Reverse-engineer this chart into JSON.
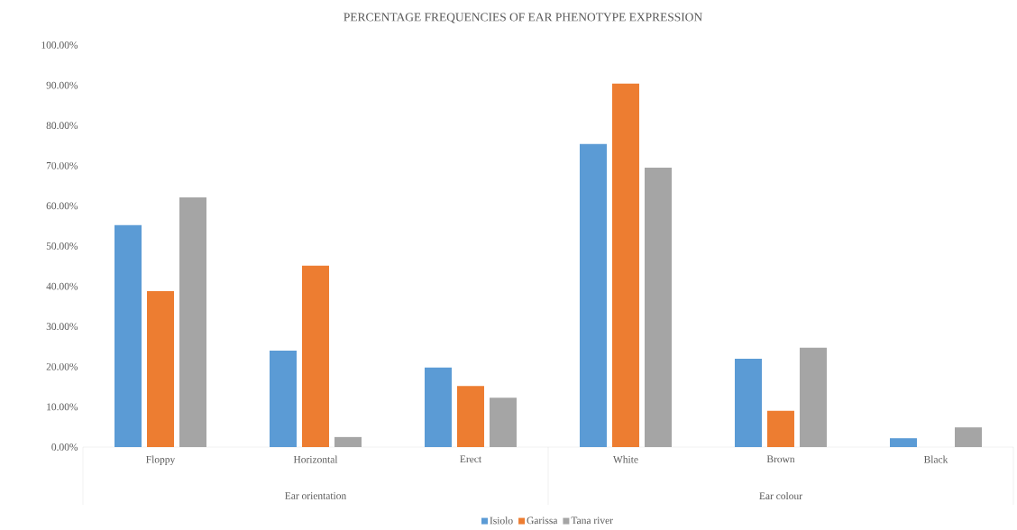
{
  "chart_data": {
    "type": "bar",
    "title": "PERCENTAGE FREQUENCIES OF EAR PHENOTYPE EXPRESSION",
    "categories": [
      "Floppy",
      "Horizontal",
      "Erect",
      "White",
      "Brown",
      "Black"
    ],
    "annotations": [
      "Ear orientation",
      "Ear colour"
    ],
    "series": [
      {
        "name": "Isiolo",
        "color": "#5b9bd5",
        "values": [
          55.2,
          24.0,
          19.8,
          75.4,
          22.0,
          2.2
        ]
      },
      {
        "name": "Garissa",
        "color": "#ed7d31",
        "values": [
          38.8,
          45.1,
          15.2,
          90.4,
          9.0,
          null
        ]
      },
      {
        "name": "Tana river",
        "color": "#a5a5a5",
        "values": [
          62.1,
          2.5,
          12.3,
          69.5,
          24.7,
          4.9
        ]
      }
    ],
    "ylim": [
      0,
      100
    ],
    "yticks": [
      {
        "value": 0,
        "label": "0.00%"
      },
      {
        "value": 10,
        "label": "10.00%"
      },
      {
        "value": 20,
        "label": "20.00%"
      },
      {
        "value": 30,
        "label": "30.00%"
      },
      {
        "value": 40,
        "label": "40.00%"
      },
      {
        "value": 50,
        "label": "50.00%"
      },
      {
        "value": 60,
        "label": "60.00%"
      },
      {
        "value": 70,
        "label": "70.00%"
      },
      {
        "value": 80,
        "label": "80.00%"
      },
      {
        "value": 90,
        "label": "90.00%"
      },
      {
        "value": 100,
        "label": "100.00%"
      }
    ],
    "legend": "bottom"
  }
}
